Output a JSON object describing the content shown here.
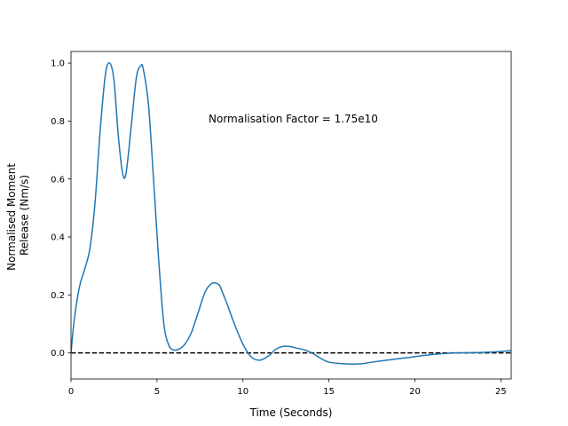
{
  "chart_data": {
    "type": "line",
    "title": "",
    "xlabel": "Time (Seconds)",
    "ylabel_lines": [
      "Normalised Moment",
      "Release (Nm/s)"
    ],
    "xlim": [
      0,
      25.6
    ],
    "ylim": [
      -0.09,
      1.04
    ],
    "xticks": [
      0,
      5,
      10,
      15,
      20,
      25
    ],
    "yticks": [
      0.0,
      0.2,
      0.4,
      0.6,
      0.8,
      1.0
    ],
    "xtick_labels": [
      "0",
      "5",
      "10",
      "15",
      "20",
      "25"
    ],
    "ytick_labels": [
      "0.0",
      "0.2",
      "0.4",
      "0.6",
      "0.8",
      "1.0"
    ],
    "grid": false,
    "annotation": "Normalisation Factor = 1.75e10",
    "series": [
      {
        "color": "#1f77b4",
        "x": [
          0,
          0.2,
          0.5,
          0.8,
          1.1,
          1.4,
          1.7,
          2.0,
          2.25,
          2.5,
          2.75,
          3.0,
          3.2,
          3.5,
          3.8,
          4.05,
          4.2,
          4.5,
          4.8,
          5.1,
          5.4,
          5.7,
          6.0,
          6.3,
          6.6,
          7.0,
          7.4,
          7.8,
          8.2,
          8.6,
          8.8,
          9.1,
          9.5,
          10.0,
          10.5,
          11.0,
          11.5,
          11.9,
          12.3,
          12.7,
          13.1,
          13.6,
          14.0,
          14.5,
          15.0,
          16.0,
          16.8,
          17.5,
          18.5,
          19.5,
          20.5,
          21.5,
          22.5,
          23.5,
          24.5,
          25.6
        ],
        "y": [
          0.0,
          0.12,
          0.23,
          0.29,
          0.36,
          0.52,
          0.77,
          0.96,
          1.0,
          0.94,
          0.75,
          0.62,
          0.62,
          0.78,
          0.95,
          0.99,
          0.98,
          0.86,
          0.6,
          0.32,
          0.1,
          0.025,
          0.01,
          0.014,
          0.028,
          0.07,
          0.14,
          0.21,
          0.24,
          0.235,
          0.21,
          0.165,
          0.1,
          0.03,
          -0.015,
          -0.025,
          -0.01,
          0.012,
          0.022,
          0.022,
          0.017,
          0.01,
          0.0,
          -0.018,
          -0.032,
          -0.038,
          -0.038,
          -0.032,
          -0.024,
          -0.017,
          -0.009,
          -0.003,
          0.0,
          0.001,
          0.003,
          0.008
        ]
      }
    ],
    "reference_lines": [
      {
        "y": 0,
        "color": "#000000",
        "style": "dashed"
      }
    ]
  }
}
